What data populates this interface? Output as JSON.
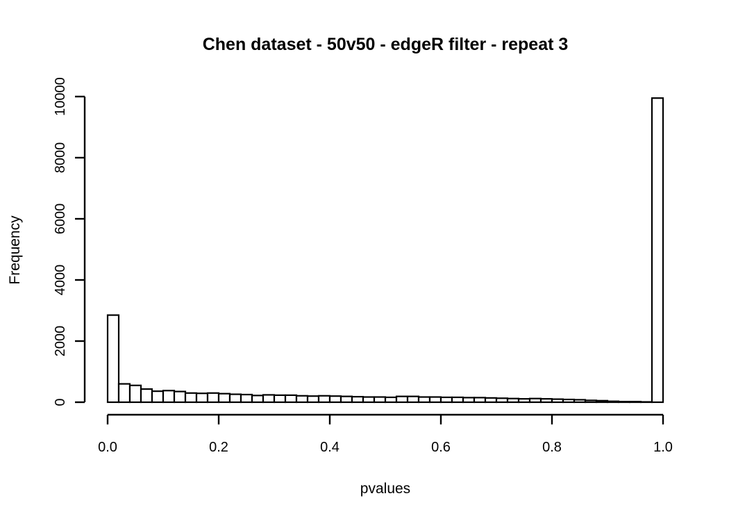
{
  "chart_data": {
    "type": "bar",
    "title": "Chen dataset - 50v50 - edgeR filter - repeat 3",
    "xlabel": "pvalues",
    "ylabel": "Frequency",
    "xlim": [
      0,
      1
    ],
    "ylim": [
      0,
      10000
    ],
    "x_ticks": [
      "0.0",
      "0.2",
      "0.4",
      "0.6",
      "0.8",
      "1.0"
    ],
    "y_ticks": [
      "0",
      "2000",
      "4000",
      "6000",
      "8000",
      "10000"
    ],
    "bin_width": 0.02,
    "bin_starts": [
      0.0,
      0.02,
      0.04,
      0.06,
      0.08,
      0.1,
      0.12,
      0.14,
      0.16,
      0.18,
      0.2,
      0.22,
      0.24,
      0.26,
      0.28,
      0.3,
      0.32,
      0.34,
      0.36,
      0.38,
      0.4,
      0.42,
      0.44,
      0.46,
      0.48,
      0.5,
      0.52,
      0.54,
      0.56,
      0.58,
      0.6,
      0.62,
      0.64,
      0.66,
      0.68,
      0.7,
      0.72,
      0.74,
      0.76,
      0.78,
      0.8,
      0.82,
      0.84,
      0.86,
      0.88,
      0.9,
      0.92,
      0.94,
      0.96,
      0.98
    ],
    "values": [
      2850,
      600,
      550,
      430,
      360,
      380,
      350,
      300,
      290,
      300,
      280,
      260,
      250,
      220,
      240,
      230,
      230,
      210,
      200,
      210,
      200,
      190,
      180,
      170,
      170,
      160,
      190,
      190,
      170,
      170,
      160,
      160,
      150,
      150,
      140,
      130,
      120,
      110,
      120,
      110,
      100,
      90,
      80,
      60,
      50,
      30,
      20,
      20,
      10,
      9950
    ],
    "grid": false,
    "legend": "none"
  }
}
